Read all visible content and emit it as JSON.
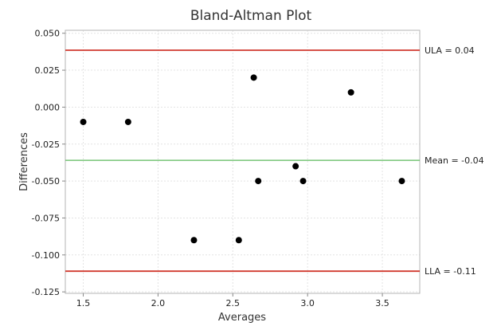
{
  "chart_data": {
    "type": "scatter",
    "title": "Bland-Altman Plot",
    "xlabel": "Averages",
    "ylabel": "Differences",
    "xlim": [
      1.38,
      3.75
    ],
    "ylim": [
      -0.126,
      0.052
    ],
    "xticks": [
      1.5,
      2.0,
      2.5,
      3.0,
      3.5
    ],
    "xtick_labels": [
      "1.5",
      "2.0",
      "2.5",
      "3.0",
      "3.5"
    ],
    "yticks": [
      0.05,
      0.025,
      0.0,
      -0.025,
      -0.05,
      -0.075,
      -0.1,
      -0.125
    ],
    "ytick_labels": [
      "0.050",
      "0.025",
      "0.000",
      "-0.025",
      "-0.050",
      "-0.075",
      "-0.100",
      "-0.125"
    ],
    "grid": true,
    "points": [
      {
        "x": 1.5,
        "y": -0.01
      },
      {
        "x": 1.8,
        "y": -0.01
      },
      {
        "x": 2.24,
        "y": -0.09
      },
      {
        "x": 2.54,
        "y": -0.09
      },
      {
        "x": 2.64,
        "y": 0.02
      },
      {
        "x": 2.67,
        "y": -0.05
      },
      {
        "x": 2.92,
        "y": -0.04
      },
      {
        "x": 2.97,
        "y": -0.05
      },
      {
        "x": 3.29,
        "y": 0.01
      },
      {
        "x": 3.63,
        "y": -0.05
      }
    ],
    "reference_lines": [
      {
        "y": 0.0385,
        "label": "ULA = 0.04",
        "color": "#d13a2f"
      },
      {
        "y": -0.036,
        "label": "Mean = -0.04",
        "color": "#5cb85c"
      },
      {
        "y": -0.111,
        "label": "LLA = -0.11",
        "color": "#d13a2f"
      }
    ],
    "colors": {
      "point": "#000000",
      "grid": "#e3e3e3",
      "frame": "#b5b5b5"
    }
  }
}
